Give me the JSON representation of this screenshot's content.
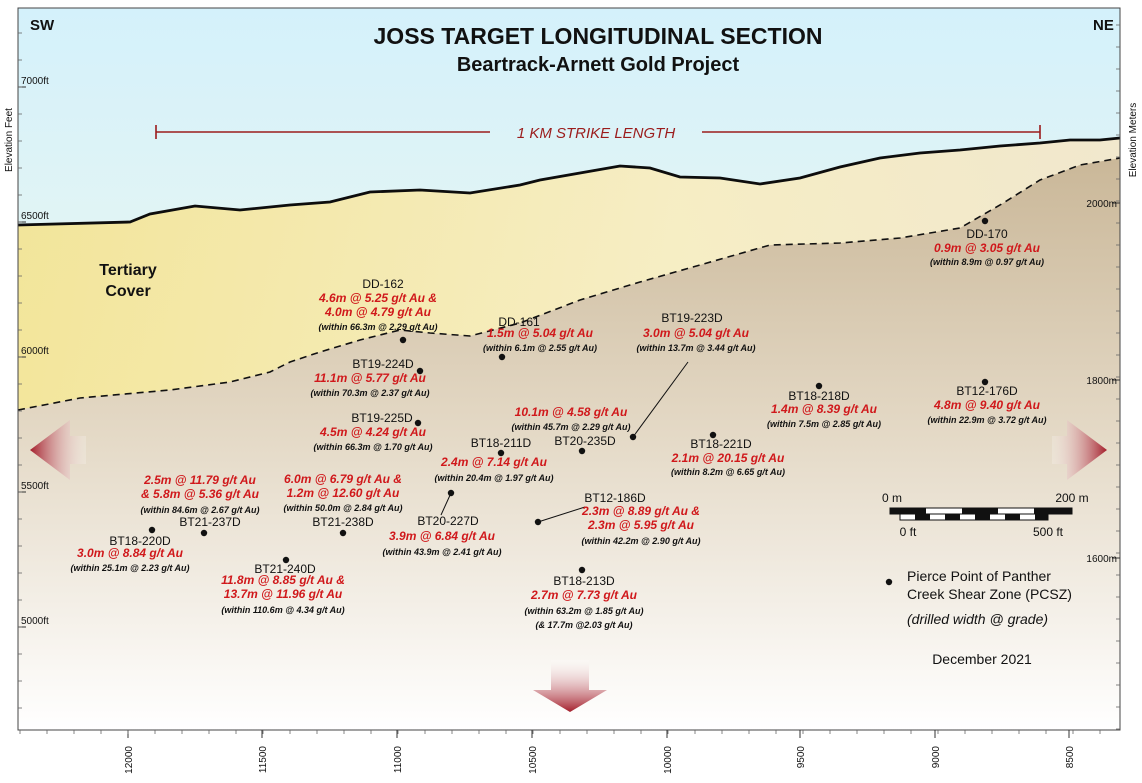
{
  "title": "JOSS TARGET LONGITUDINAL SECTION",
  "subtitle": "Beartrack-Arnett Gold Project",
  "direction_left": "SW",
  "direction_right": "NE",
  "strike_length_label": "1 KM STRIKE LENGTH",
  "cover_label": [
    "Tertiary",
    "Cover"
  ],
  "left_axis": {
    "title": "Elevation Feet",
    "ticks": [
      "7000ft",
      "6500ft",
      "6000ft",
      "5500ft",
      "5000ft"
    ]
  },
  "right_axis": {
    "title": "Elevation Meters",
    "ticks": [
      "2000m",
      "1800m",
      "1600m"
    ]
  },
  "bottom_axis": {
    "ticks": [
      "12000",
      "11500",
      "11000",
      "10500",
      "10000",
      "9500",
      "9000",
      "8500"
    ]
  },
  "drill_holes": [
    {
      "name": "DD-170",
      "intercepts": [
        "0.9m @ 3.05 g/t Au"
      ],
      "within": [
        "(within 8.9m @ 0.97 g/t Au)"
      ]
    },
    {
      "name": "DD-162",
      "intercepts": [
        "4.6m @ 5.25 g/t Au &",
        "4.0m @ 4.79 g/t Au"
      ],
      "within": [
        "(within 66.3m @ 2.29 g/t Au)"
      ]
    },
    {
      "name": "DD-161",
      "intercepts": [
        "1.5m @ 5.04 g/t Au"
      ],
      "within": [
        "(within 6.1m @ 2.55 g/t Au)"
      ]
    },
    {
      "name": "BT19-223D",
      "intercepts": [
        "3.0m @ 5.04 g/t Au"
      ],
      "within": [
        "(within 13.7m @ 3.44 g/t Au)"
      ]
    },
    {
      "name": "BT19-224D",
      "intercepts": [
        "11.1m @ 5.77 g/t Au"
      ],
      "within": [
        "(within 70.3m @ 2.37 g/t Au)"
      ]
    },
    {
      "name": "BT18-218D",
      "intercepts": [
        "1.4m @ 8.39 g/t Au"
      ],
      "within": [
        "(within 7.5m @ 2.85 g/t Au)"
      ]
    },
    {
      "name": "BT12-176D",
      "intercepts": [
        "4.8m @ 9.40 g/t Au"
      ],
      "within": [
        "(within 22.9m @ 3.72 g/t Au)"
      ]
    },
    {
      "name": "BT19-225D",
      "intercepts": [
        "4.5m @ 4.24 g/t Au"
      ],
      "within": [
        "(within 66.3m @ 1.70 g/t Au)"
      ]
    },
    {
      "name": "BT20-235D",
      "intercepts": [
        "10.1m @ 4.58 g/t Au"
      ],
      "within": [
        "(within 45.7m @ 2.29 g/t Au)"
      ]
    },
    {
      "name": "BT18-211D",
      "intercepts": [
        "2.4m @ 7.14 g/t Au"
      ],
      "within": [
        "(within 20.4m @ 1.97 g/t Au)"
      ]
    },
    {
      "name": "BT18-221D",
      "intercepts": [
        "2.1m @ 20.15 g/t Au"
      ],
      "within": [
        "(within 8.2m @ 6.65 g/t Au)"
      ]
    },
    {
      "name": "BT21-237D",
      "intercepts": [
        "2.5m @ 11.79 g/t Au",
        "& 5.8m @ 5.36 g/t Au"
      ],
      "within": [
        "(within 84.6m @ 2.67 g/t Au)"
      ]
    },
    {
      "name": "BT21-238D",
      "intercepts": [
        "6.0m @ 6.79 g/t Au &",
        "1.2m @ 12.60 g/t Au"
      ],
      "within": [
        "(within 50.0m @ 2.84 g/t Au)"
      ]
    },
    {
      "name": "BT20-227D",
      "intercepts": [
        "3.9m @ 6.84 g/t Au"
      ],
      "within": [
        "(within 43.9m @ 2.41 g/t Au)"
      ]
    },
    {
      "name": "BT12-186D",
      "intercepts": [
        "2.3m @ 8.89 g/t Au &",
        "2.3m @ 5.95 g/t Au"
      ],
      "within": [
        "(within 42.2m @ 2.90 g/t Au)"
      ]
    },
    {
      "name": "BT18-220D",
      "intercepts": [
        "3.0m @ 8.84 g/t Au"
      ],
      "within": [
        "(within 25.1m @ 2.23 g/t Au)"
      ]
    },
    {
      "name": "BT21-240D",
      "intercepts": [
        "11.8m @ 8.85 g/t Au &",
        "13.7m @ 11.96 g/t Au"
      ],
      "within": [
        "(within 110.6m @ 4.34 g/t Au)"
      ]
    },
    {
      "name": "BT18-213D",
      "intercepts": [
        "2.7m @ 7.73 g/t Au"
      ],
      "within": [
        "(within 63.2m @ 1.85 g/t Au)",
        "(& 17.7m @2.03 g/t Au)"
      ]
    }
  ],
  "scale_bar": {
    "metric": [
      "0 m",
      "200 m"
    ],
    "imperial": [
      "0 ft",
      "500 ft"
    ]
  },
  "legend": {
    "pierce_point": [
      "Pierce Point of Panther",
      "Creek Shear Zone (PCSZ)"
    ],
    "note": "(drilled width @ grade)"
  },
  "date": "December 2021",
  "colors": {
    "intercept_red": "#d0181b",
    "arrow_red": "#a8202a",
    "strike_line": "#9b1c1c",
    "tertiary_cover": "#f7eeb4",
    "bedrock": "#c9b698",
    "sky": "#d9f3fb"
  }
}
